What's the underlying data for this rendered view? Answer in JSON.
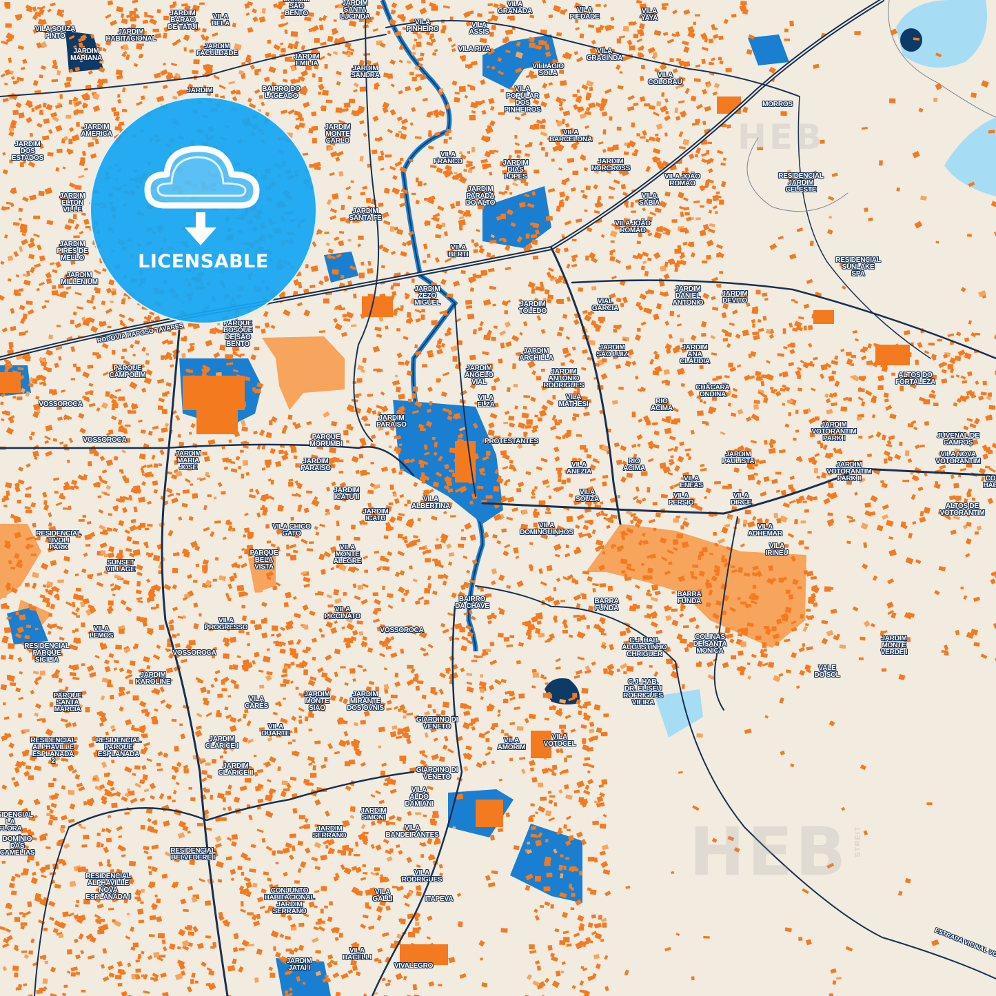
{
  "colors": {
    "background": "#f1ebe0",
    "buildings": "#f47a20",
    "buildings_light": "#f7a45c",
    "water": "#1a7fd0",
    "water_dark": "#0d3a66",
    "water_light": "#a7dcf5",
    "roads": "#173052",
    "badge": "#16a6f3"
  },
  "badge": {
    "icon": "cloud-download-icon",
    "label": "LICENSABLE"
  },
  "watermark": {
    "brand": "HEB",
    "sub": "STREIT"
  },
  "road_labels": [
    "RODOVIA RAPOSO TAVARES",
    "ESTRADA VICINAL VOTORAN"
  ],
  "labels": [
    "JARDIM\nSÃO\nBENTO",
    "JARDIM\nSANTA\nLUCINDA",
    "JARDIM\nBARÃO\nDE TATUÍ",
    "VILA\nBELA",
    "VILA SOUZA\nPINTO",
    "JARDIM\nHABITACIONAL",
    "JARDIM\nMARIANA",
    "JARDIM\nFACULDADE",
    "JARDIM\nEMÍLIA",
    "JARDIM\nSANDRA",
    "BAIRRO DO\nLAGEADO",
    "JARDIM",
    "JARDIM\nAMÉRICA",
    "JARDIM\nDOS\nESTADOS",
    "JARDIM\nMONTE\nCARLO",
    "JARDIM\nELTON\nVILLE",
    "JARDIM\nPIRES DE\nMELLO",
    "JARDIM\nMILLENIUM",
    "JARDIM\nSANTA FÉ",
    "VILA\nFRANCO",
    "VILA\nBERTI",
    "JARDIM\nZEZO\nMIGUEL",
    "PARQUE\nBOSQUE\nDE SÃO\nBENTO",
    "VILA\nGRANADA",
    "VILA\nPINHEIRO",
    "VILA\nASSIS",
    "VILA RIVA",
    "VILA\nPIEDADE",
    "VILA\nYAYA",
    "VILA\nGRACINDA",
    "VILLAGIO\nSOLA",
    "VILA\nCOLORAU",
    "VILA\nPOPULAR\nDOS\nPINHEIROS",
    "MORROS",
    "VILA\nBARCELONA",
    "JARDIM\nDIAS\nLOPES",
    "JARDIM\nNORCROSS",
    "VILA JOÃO\nROMÃO",
    "RESIDENCIAL\nJARDIM\nCELESTE",
    "JARDIM\nPARADA\nDO ALTO",
    "VILA\nSABIÁ",
    "VILA JOÃO\nROMÃO",
    "RESIDENCIAL\nSUNLAKE\nSPA",
    "JARDIM\nDANIEL\nANTONIO",
    "JARDIM\nDEVITO",
    "VIAL\nGARCIA",
    "JARDIM\nTOLEDO",
    "JARDIM\nARCHILLA",
    "JARDIM\nSÃO LUIZ",
    "JARDIM\nANA\nCLÁUDIA",
    "JARDIM\nANGELO\nVIAL",
    "JARDIM\nANTONIO\nRODRIGUES",
    "ALTOS DO\nFORTALEZA",
    "CHÁCARA\nONDINA",
    "VILA\nELZA",
    "VILA\nMATHESI",
    "RIO\nACIMA",
    "PARQUE\nCAMPOLIM",
    "VOSSOROCA",
    "VOSSOROCA",
    "JARDIM\nPARAISO",
    "PARQUE\nMORUMBI",
    "PROTESTANTES",
    "JARDIM\nVOTORANTIM\nPARK I",
    "JUVENAL DE\nCAMPOS",
    "JARDIM\nMARIA\nJOSÉ",
    "JARDIM\nPARAISO",
    "JARDIM\nPAULISTA",
    "VILA NOVA\nVOTORANTIM",
    "VILA\nANEZIA",
    "RIO\nACIMA",
    "JARDIM\nVOTORANTIM\nPARK II",
    "CO\nHAB",
    "VILA\nENÉAS",
    "JARDIM\nICATU II",
    "VILA\nSOUZA",
    "VILA\nPERSIO",
    "VILA\nDIRCE",
    "ALTOS DE\nVOTORANTIM",
    "VILA\nALBERTINA",
    "JARDIM\nICATU",
    "VILA CHICO\nGATO",
    "VILA\nDOMINGUINHOS",
    "VILA\nADHEMAR",
    "RESIDENCIAL\nTIVOLI\nPARK",
    "VILA\nIRINEU",
    "PARQUE\nBELA\nVISTA",
    "VILA\nMONTE\nALEGRE",
    "SUNSET\nVILLAGE",
    "BAIRRO\nDA CHAVE",
    "BARRA\nFUNDA",
    "BARRA\nFUNDA",
    "VILA\nPICCINATO",
    "VILA\nPROGRESSO",
    "VILA\nLEMOS",
    "VOSSOROCA",
    "C.J. HAB.\nAUGUSTINHO\nCHRIGUER",
    "COLINAS\nDE SANTA\nMÔNICA",
    "JARDIM\nMONTE\nVERDE I",
    "RESIDENCIAL\nPARQUE\nSICÍLIA",
    "VOSSOROCA",
    "VALE\nDO SOL",
    "JARDIM\nKAROLINE",
    "C.J. HAB.\nDR. ELISEU\nROFRIGUES\nVIEIRA",
    "PARQUE\nSANTA\nMÁRCIA",
    "JARDIM\nMONTE\nSIÃO",
    "JARDIM\nMIRANTE\nDOS OVNIS",
    "VILA\nCARES",
    "GIARDINO DI\nVENETO",
    "VILA\nDUARTE",
    "VILA\nVOTOCEL",
    "VILA\nAMORIM",
    "RESIDENCIAL\nALPHAVILLE\nESPLANADA\n2",
    "RESIDENCIAL\nPARQUE\nESPLANADA",
    "JARDIM\nCLARICE I",
    "JARDIM\nCLARICE II",
    "GIARDINO DI\nVENETO",
    "VILA\nALDO\nDAMIANI",
    "JARDIM\nSIMONI",
    "JARDIM\nSERRANO",
    "VILA\nBANDEIRANTES",
    "RESIDENCIAL\nBELVEDERE I",
    "RESIDENCIAL\nLA\nFLORA",
    "DOMÍNIO\nDAS\nCAMÉLIAS",
    "VILA\nRODRIGUES",
    "RESIDENCIAL\nALPHAVILLE\nNOVA\nESPLANADA I",
    "CONJUNTO\nHABITACIONAL\nJARDIM\nSERRANO",
    "VILA\nGALLI",
    "ITAPEVA",
    "JARDIM\nJATAÍ I",
    "VILA\nBACELLI",
    "VIVALEGRO"
  ]
}
